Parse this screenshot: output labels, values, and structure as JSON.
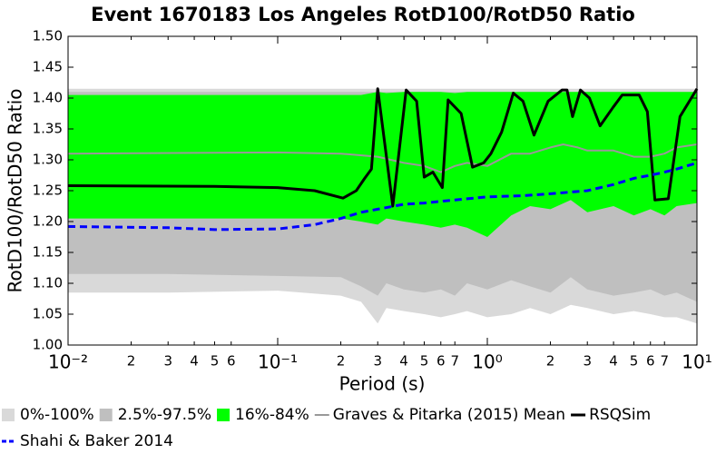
{
  "chart_data": {
    "type": "band-line",
    "title": "Event 1670183 Los Angeles RotD100/RotD50 Ratio",
    "x_label": "Period (s)",
    "y_label": "RotD100/RotD50 Ratio",
    "xscale": "log",
    "xlim": [
      0.01,
      10
    ],
    "ylim": [
      1.0,
      1.5
    ],
    "xticks": [
      {
        "value": 0.01,
        "label": "10⁻²"
      },
      {
        "value": 0.1,
        "label": "10⁻¹"
      },
      {
        "value": 1,
        "label": "10⁰"
      },
      {
        "value": 10,
        "label": "10¹"
      }
    ],
    "xminorticks": [
      {
        "value": 0.02,
        "label": "2"
      },
      {
        "value": 0.03,
        "label": "3"
      },
      {
        "value": 0.04,
        "label": "4"
      },
      {
        "value": 0.05,
        "label": "5"
      },
      {
        "value": 0.06,
        "label": "6"
      },
      {
        "value": 0.2,
        "label": "2"
      },
      {
        "value": 0.3,
        "label": "3"
      },
      {
        "value": 0.4,
        "label": "4"
      },
      {
        "value": 0.5,
        "label": "5"
      },
      {
        "value": 0.6,
        "label": "6"
      },
      {
        "value": 0.7,
        "label": "7"
      },
      {
        "value": 2,
        "label": "2"
      },
      {
        "value": 3,
        "label": "3"
      },
      {
        "value": 4,
        "label": "4"
      },
      {
        "value": 5,
        "label": "5"
      },
      {
        "value": 6,
        "label": "6"
      },
      {
        "value": 7,
        "label": "7"
      }
    ],
    "yticks": [
      {
        "value": 1.0,
        "label": "1.00"
      },
      1.05,
      {
        "value": 1.1,
        "label": "1.10"
      },
      1.15,
      {
        "value": 1.2,
        "label": "1.20"
      },
      1.25,
      {
        "value": 1.3,
        "label": "1.30"
      },
      1.35,
      {
        "value": 1.4,
        "label": "1.40"
      },
      1.45,
      {
        "value": 1.5,
        "label": "1.50"
      }
    ],
    "series": [
      {
        "name": "0%-100%",
        "kind": "band",
        "color": "#d9d9d9",
        "x": [
          0.01,
          0.03,
          0.1,
          0.2,
          0.25,
          0.3,
          0.33,
          0.4,
          0.5,
          0.6,
          0.7,
          0.8,
          1.0,
          1.3,
          1.6,
          2.0,
          2.5,
          3.0,
          4.0,
          5.0,
          6.0,
          7.0,
          8.0,
          10.0
        ],
        "upper": [
          1.415,
          1.415,
          1.415,
          1.415,
          1.415,
          1.415,
          1.415,
          1.415,
          1.415,
          1.415,
          1.415,
          1.415,
          1.415,
          1.415,
          1.415,
          1.415,
          1.415,
          1.415,
          1.415,
          1.415,
          1.415,
          1.415,
          1.415,
          1.415
        ],
        "lower": [
          1.085,
          1.085,
          1.088,
          1.08,
          1.07,
          1.035,
          1.06,
          1.055,
          1.05,
          1.045,
          1.05,
          1.055,
          1.045,
          1.05,
          1.06,
          1.05,
          1.065,
          1.06,
          1.05,
          1.055,
          1.05,
          1.045,
          1.045,
          1.035
        ]
      },
      {
        "name": "2.5%-97.5%",
        "kind": "band",
        "color": "#bfbfbf",
        "x": [
          0.01,
          0.03,
          0.1,
          0.2,
          0.25,
          0.3,
          0.33,
          0.4,
          0.5,
          0.6,
          0.7,
          0.8,
          1.0,
          1.3,
          1.6,
          2.0,
          2.5,
          3.0,
          4.0,
          5.0,
          6.0,
          7.0,
          8.0,
          10.0
        ],
        "upper": [
          1.41,
          1.41,
          1.41,
          1.41,
          1.41,
          1.41,
          1.41,
          1.41,
          1.41,
          1.41,
          1.41,
          1.41,
          1.41,
          1.41,
          1.41,
          1.41,
          1.41,
          1.41,
          1.41,
          1.41,
          1.41,
          1.41,
          1.41,
          1.41
        ],
        "lower": [
          1.115,
          1.115,
          1.112,
          1.11,
          1.095,
          1.08,
          1.1,
          1.09,
          1.085,
          1.09,
          1.08,
          1.1,
          1.09,
          1.105,
          1.095,
          1.085,
          1.11,
          1.09,
          1.08,
          1.085,
          1.09,
          1.08,
          1.085,
          1.07
        ]
      },
      {
        "name": "16%-84%",
        "kind": "band",
        "color": "#00ff00",
        "x": [
          0.01,
          0.03,
          0.1,
          0.2,
          0.25,
          0.3,
          0.33,
          0.4,
          0.5,
          0.6,
          0.7,
          0.8,
          1.0,
          1.3,
          1.6,
          2.0,
          2.5,
          3.0,
          4.0,
          5.0,
          6.0,
          7.0,
          8.0,
          10.0
        ],
        "upper": [
          1.405,
          1.405,
          1.405,
          1.405,
          1.405,
          1.41,
          1.408,
          1.41,
          1.41,
          1.41,
          1.408,
          1.41,
          1.41,
          1.41,
          1.41,
          1.41,
          1.41,
          1.41,
          1.41,
          1.41,
          1.41,
          1.41,
          1.41,
          1.41
        ],
        "lower": [
          1.205,
          1.205,
          1.205,
          1.205,
          1.2,
          1.195,
          1.205,
          1.2,
          1.195,
          1.19,
          1.195,
          1.19,
          1.175,
          1.21,
          1.225,
          1.22,
          1.235,
          1.215,
          1.225,
          1.21,
          1.22,
          1.21,
          1.225,
          1.23
        ]
      },
      {
        "name": "Graves & Pitarka (2015) Mean",
        "kind": "line",
        "color": "#999999",
        "width": 2,
        "x": [
          0.01,
          0.1,
          0.2,
          0.3,
          0.4,
          0.5,
          0.6,
          0.7,
          0.8,
          1.0,
          1.3,
          1.6,
          2.0,
          2.3,
          2.7,
          3.0,
          4.0,
          5.0,
          6.0,
          7.0,
          8.0,
          10.0
        ],
        "values": [
          1.31,
          1.312,
          1.31,
          1.305,
          1.295,
          1.29,
          1.28,
          1.29,
          1.295,
          1.29,
          1.31,
          1.31,
          1.32,
          1.325,
          1.32,
          1.315,
          1.315,
          1.305,
          1.305,
          1.31,
          1.32,
          1.325
        ]
      },
      {
        "name": "RSQSim",
        "kind": "line",
        "color": "#000000",
        "width": 3,
        "x": [
          0.01,
          0.05,
          0.1,
          0.15,
          0.205,
          0.237,
          0.26,
          0.28,
          0.3,
          0.354,
          0.41,
          0.46,
          0.5,
          0.55,
          0.61,
          0.65,
          0.75,
          0.85,
          0.96,
          1.04,
          1.17,
          1.33,
          1.48,
          1.67,
          1.95,
          2.27,
          2.4,
          2.55,
          2.78,
          3.07,
          3.45,
          3.98,
          4.4,
          5.3,
          5.8,
          6.3,
          7.3,
          8.3,
          10.0
        ],
        "values": [
          1.258,
          1.257,
          1.255,
          1.25,
          1.238,
          1.25,
          1.27,
          1.285,
          1.415,
          1.225,
          1.413,
          1.395,
          1.272,
          1.28,
          1.255,
          1.397,
          1.375,
          1.288,
          1.295,
          1.31,
          1.345,
          1.408,
          1.395,
          1.34,
          1.395,
          1.413,
          1.413,
          1.37,
          1.413,
          1.4,
          1.355,
          1.385,
          1.405,
          1.405,
          1.378,
          1.235,
          1.237,
          1.37,
          1.415
        ]
      },
      {
        "name": "Shahi & Baker 2014",
        "kind": "line",
        "color": "#0000ff",
        "width": 3,
        "dashed": true,
        "x": [
          0.01,
          0.03,
          0.05,
          0.1,
          0.15,
          0.2,
          0.25,
          0.3,
          0.4,
          0.5,
          0.7,
          1.0,
          1.5,
          2.0,
          3.0,
          4.0,
          5.0,
          6.0,
          7.0,
          8.0,
          10.0
        ],
        "values": [
          1.192,
          1.19,
          1.187,
          1.188,
          1.195,
          1.205,
          1.215,
          1.22,
          1.228,
          1.23,
          1.235,
          1.24,
          1.242,
          1.245,
          1.25,
          1.26,
          1.27,
          1.275,
          1.28,
          1.285,
          1.295
        ]
      }
    ]
  }
}
